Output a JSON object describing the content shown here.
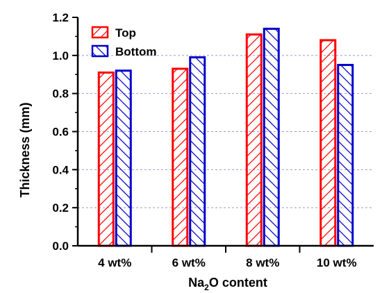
{
  "chart_data": {
    "type": "bar",
    "title": "",
    "xlabel_main": "Na",
    "xlabel_sub": "2",
    "xlabel_rest": "O content",
    "ylabel": "Thickness (mm)",
    "ylim": [
      0.0,
      1.2
    ],
    "yticks": [
      "0.0",
      "0.2",
      "0.4",
      "0.6",
      "0.8",
      "1.0",
      "1.2"
    ],
    "grid": "horizontal dashed",
    "legend_position": "top-left",
    "categories": [
      "4 wt%",
      "6 wt%",
      "8 wt%",
      "10 wt%"
    ],
    "series": [
      {
        "name": "Top",
        "values": [
          0.91,
          0.93,
          1.11,
          1.08
        ],
        "color": "#ff0000",
        "hatch": "forward-diagonal"
      },
      {
        "name": "Bottom",
        "values": [
          0.92,
          0.99,
          1.14,
          0.95
        ],
        "color": "#0000cc",
        "hatch": "backward-diagonal"
      }
    ]
  }
}
